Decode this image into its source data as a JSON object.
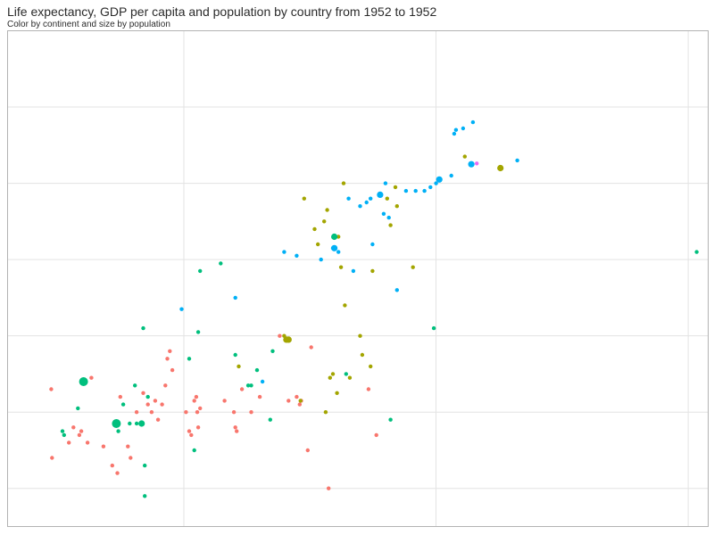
{
  "chart_data": {
    "type": "scatter",
    "title": "Life expectancy, GDP per capita and population by country from 1952 to 1952",
    "subtitle": "Color by continent and size by population",
    "x_scale": "log",
    "xlim": [
      200,
      120000
    ],
    "ylim": [
      25,
      90
    ],
    "x_gridlines": [
      1000,
      10000,
      100000
    ],
    "y_gridlines": [
      30,
      40,
      50,
      60,
      70,
      80
    ],
    "grid": true,
    "colors": {
      "red": "#F8766D",
      "olive": "#A3A500",
      "green": "#00BF7D",
      "blue": "#00B0F6",
      "magenta": "#E76BF3"
    },
    "series": [
      {
        "color": "#F8766D",
        "points": [
          {
            "x": 298,
            "y": 43.0,
            "size": 1
          },
          {
            "x": 300,
            "y": 34.0,
            "size": 1
          },
          {
            "x": 350,
            "y": 36.0,
            "size": 1
          },
          {
            "x": 365,
            "y": 38.0,
            "size": 1
          },
          {
            "x": 385,
            "y": 37.0,
            "size": 1
          },
          {
            "x": 392,
            "y": 37.5,
            "size": 1
          },
          {
            "x": 415,
            "y": 36.0,
            "size": 1
          },
          {
            "x": 430,
            "y": 44.5,
            "size": 1
          },
          {
            "x": 480,
            "y": 35.5,
            "size": 1
          },
          {
            "x": 520,
            "y": 33.0,
            "size": 1
          },
          {
            "x": 545,
            "y": 32.0,
            "size": 1
          },
          {
            "x": 560,
            "y": 42.0,
            "size": 1
          },
          {
            "x": 600,
            "y": 35.5,
            "size": 1
          },
          {
            "x": 615,
            "y": 34.0,
            "size": 1
          },
          {
            "x": 650,
            "y": 40.0,
            "size": 1
          },
          {
            "x": 690,
            "y": 42.5,
            "size": 1
          },
          {
            "x": 720,
            "y": 41.0,
            "size": 1
          },
          {
            "x": 745,
            "y": 40.0,
            "size": 1
          },
          {
            "x": 770,
            "y": 41.5,
            "size": 1
          },
          {
            "x": 790,
            "y": 39.0,
            "size": 1
          },
          {
            "x": 820,
            "y": 41.0,
            "size": 1
          },
          {
            "x": 845,
            "y": 43.5,
            "size": 1
          },
          {
            "x": 860,
            "y": 47.0,
            "size": 1
          },
          {
            "x": 880,
            "y": 48.0,
            "size": 1
          },
          {
            "x": 900,
            "y": 45.5,
            "size": 1
          },
          {
            "x": 1020,
            "y": 40.0,
            "size": 1
          },
          {
            "x": 1050,
            "y": 37.5,
            "size": 1
          },
          {
            "x": 1070,
            "y": 37.0,
            "size": 1
          },
          {
            "x": 1100,
            "y": 41.5,
            "size": 1
          },
          {
            "x": 1120,
            "y": 42.0,
            "size": 1
          },
          {
            "x": 1130,
            "y": 40.0,
            "size": 1
          },
          {
            "x": 1140,
            "y": 38.0,
            "size": 1
          },
          {
            "x": 1160,
            "y": 40.5,
            "size": 1
          },
          {
            "x": 1450,
            "y": 41.5,
            "size": 1
          },
          {
            "x": 1580,
            "y": 40.0,
            "size": 1
          },
          {
            "x": 1600,
            "y": 38.0,
            "size": 1
          },
          {
            "x": 1620,
            "y": 37.5,
            "size": 1
          },
          {
            "x": 1700,
            "y": 43.0,
            "size": 1
          },
          {
            "x": 1850,
            "y": 40.0,
            "size": 1
          },
          {
            "x": 2000,
            "y": 42.0,
            "size": 1
          },
          {
            "x": 2400,
            "y": 50.0,
            "size": 1
          },
          {
            "x": 2600,
            "y": 41.5,
            "size": 1
          },
          {
            "x": 2800,
            "y": 42.0,
            "size": 1
          },
          {
            "x": 2880,
            "y": 41.0,
            "size": 1
          },
          {
            "x": 2920,
            "y": 41.5,
            "size": 1
          },
          {
            "x": 3100,
            "y": 35.0,
            "size": 1
          },
          {
            "x": 3200,
            "y": 48.5,
            "size": 1
          },
          {
            "x": 3750,
            "y": 30.0,
            "size": 1
          },
          {
            "x": 5400,
            "y": 43.0,
            "size": 1
          },
          {
            "x": 5800,
            "y": 37.0,
            "size": 1
          }
        ]
      },
      {
        "color": "#A3A500",
        "points": [
          {
            "x": 1650,
            "y": 46.0,
            "size": 1
          },
          {
            "x": 2500,
            "y": 50.0,
            "size": 1
          },
          {
            "x": 2550,
            "y": 49.5,
            "size": 2
          },
          {
            "x": 2600,
            "y": 49.5,
            "size": 2
          },
          {
            "x": 2900,
            "y": 41.5,
            "size": 1
          },
          {
            "x": 3000,
            "y": 68.0,
            "size": 1
          },
          {
            "x": 3300,
            "y": 64.0,
            "size": 1
          },
          {
            "x": 3400,
            "y": 62.0,
            "size": 1
          },
          {
            "x": 3600,
            "y": 65.0,
            "size": 1
          },
          {
            "x": 3650,
            "y": 40.0,
            "size": 1
          },
          {
            "x": 3700,
            "y": 66.5,
            "size": 1
          },
          {
            "x": 3800,
            "y": 44.5,
            "size": 1
          },
          {
            "x": 3900,
            "y": 45.0,
            "size": 1
          },
          {
            "x": 4050,
            "y": 42.5,
            "size": 1
          },
          {
            "x": 4100,
            "y": 63.0,
            "size": 1
          },
          {
            "x": 4200,
            "y": 59.0,
            "size": 1
          },
          {
            "x": 4300,
            "y": 70.0,
            "size": 1
          },
          {
            "x": 4350,
            "y": 54.0,
            "size": 1
          },
          {
            "x": 4550,
            "y": 44.5,
            "size": 1
          },
          {
            "x": 5000,
            "y": 50.0,
            "size": 1
          },
          {
            "x": 5100,
            "y": 47.5,
            "size": 1
          },
          {
            "x": 5500,
            "y": 46.0,
            "size": 1
          },
          {
            "x": 5600,
            "y": 58.5,
            "size": 1
          },
          {
            "x": 6400,
            "y": 68.0,
            "size": 1
          },
          {
            "x": 6600,
            "y": 64.5,
            "size": 1
          },
          {
            "x": 6900,
            "y": 69.5,
            "size": 1
          },
          {
            "x": 7000,
            "y": 67.0,
            "size": 1
          },
          {
            "x": 8100,
            "y": 59.0,
            "size": 1
          },
          {
            "x": 13000,
            "y": 73.5,
            "size": 1
          },
          {
            "x": 18000,
            "y": 72.0,
            "size": 2
          }
        ]
      },
      {
        "color": "#00BF7D",
        "points": [
          {
            "x": 330,
            "y": 37.5,
            "size": 1
          },
          {
            "x": 335,
            "y": 37.0,
            "size": 1
          },
          {
            "x": 380,
            "y": 40.5,
            "size": 1
          },
          {
            "x": 400,
            "y": 44.0,
            "size": 3
          },
          {
            "x": 540,
            "y": 38.5,
            "size": 3
          },
          {
            "x": 550,
            "y": 37.5,
            "size": 1
          },
          {
            "x": 575,
            "y": 41.0,
            "size": 1
          },
          {
            "x": 610,
            "y": 38.5,
            "size": 1
          },
          {
            "x": 640,
            "y": 43.5,
            "size": 1
          },
          {
            "x": 650,
            "y": 38.5,
            "size": 1
          },
          {
            "x": 680,
            "y": 38.5,
            "size": 2
          },
          {
            "x": 690,
            "y": 51.0,
            "size": 1
          },
          {
            "x": 700,
            "y": 33.0,
            "size": 1
          },
          {
            "x": 700,
            "y": 29.0,
            "size": 1
          },
          {
            "x": 720,
            "y": 42.0,
            "size": 1
          },
          {
            "x": 1050,
            "y": 47.0,
            "size": 1
          },
          {
            "x": 1100,
            "y": 35.0,
            "size": 1
          },
          {
            "x": 1140,
            "y": 50.5,
            "size": 1
          },
          {
            "x": 1160,
            "y": 58.5,
            "size": 1
          },
          {
            "x": 1400,
            "y": 59.5,
            "size": 1
          },
          {
            "x": 1600,
            "y": 47.5,
            "size": 1
          },
          {
            "x": 1800,
            "y": 43.5,
            "size": 1
          },
          {
            "x": 1850,
            "y": 43.5,
            "size": 1
          },
          {
            "x": 1950,
            "y": 45.5,
            "size": 1
          },
          {
            "x": 2200,
            "y": 39.0,
            "size": 1
          },
          {
            "x": 2250,
            "y": 48.0,
            "size": 1
          },
          {
            "x": 3950,
            "y": 63.0,
            "size": 2
          },
          {
            "x": 4400,
            "y": 45.0,
            "size": 1
          },
          {
            "x": 6600,
            "y": 39.0,
            "size": 1
          },
          {
            "x": 9800,
            "y": 51.0,
            "size": 1
          },
          {
            "x": 108000,
            "y": 61.0,
            "size": 1
          }
        ]
      },
      {
        "color": "#00B0F6",
        "points": [
          {
            "x": 980,
            "y": 53.5,
            "size": 1
          },
          {
            "x": 1600,
            "y": 55.0,
            "size": 1
          },
          {
            "x": 2050,
            "y": 44.0,
            "size": 1
          },
          {
            "x": 2500,
            "y": 61.0,
            "size": 1
          },
          {
            "x": 2800,
            "y": 60.5,
            "size": 1
          },
          {
            "x": 3500,
            "y": 60.0,
            "size": 1
          },
          {
            "x": 3900,
            "y": 61.5,
            "size": 1
          },
          {
            "x": 3950,
            "y": 61.5,
            "size": 2
          },
          {
            "x": 4100,
            "y": 61.0,
            "size": 1
          },
          {
            "x": 4500,
            "y": 68.0,
            "size": 1
          },
          {
            "x": 4700,
            "y": 58.5,
            "size": 1
          },
          {
            "x": 5000,
            "y": 67.0,
            "size": 1
          },
          {
            "x": 5300,
            "y": 67.5,
            "size": 1
          },
          {
            "x": 5500,
            "y": 68.0,
            "size": 1
          },
          {
            "x": 5600,
            "y": 62.0,
            "size": 1
          },
          {
            "x": 6000,
            "y": 68.5,
            "size": 2
          },
          {
            "x": 6200,
            "y": 66.0,
            "size": 1
          },
          {
            "x": 6300,
            "y": 70.0,
            "size": 1
          },
          {
            "x": 6500,
            "y": 65.5,
            "size": 1
          },
          {
            "x": 7000,
            "y": 56.0,
            "size": 1
          },
          {
            "x": 7600,
            "y": 69.0,
            "size": 1
          },
          {
            "x": 8300,
            "y": 69.0,
            "size": 1
          },
          {
            "x": 9000,
            "y": 69.0,
            "size": 1
          },
          {
            "x": 9500,
            "y": 69.5,
            "size": 1
          },
          {
            "x": 10000,
            "y": 70.0,
            "size": 1
          },
          {
            "x": 10300,
            "y": 70.5,
            "size": 2
          },
          {
            "x": 11500,
            "y": 71.0,
            "size": 1
          },
          {
            "x": 11800,
            "y": 76.5,
            "size": 1
          },
          {
            "x": 12000,
            "y": 77.0,
            "size": 1
          },
          {
            "x": 12800,
            "y": 77.2,
            "size": 1
          },
          {
            "x": 13800,
            "y": 72.5,
            "size": 2
          },
          {
            "x": 14000,
            "y": 78.0,
            "size": 1
          },
          {
            "x": 21000,
            "y": 73.0,
            "size": 1
          }
        ]
      },
      {
        "color": "#E76BF3",
        "points": [
          {
            "x": 14500,
            "y": 72.6,
            "size": 1
          }
        ]
      }
    ]
  }
}
